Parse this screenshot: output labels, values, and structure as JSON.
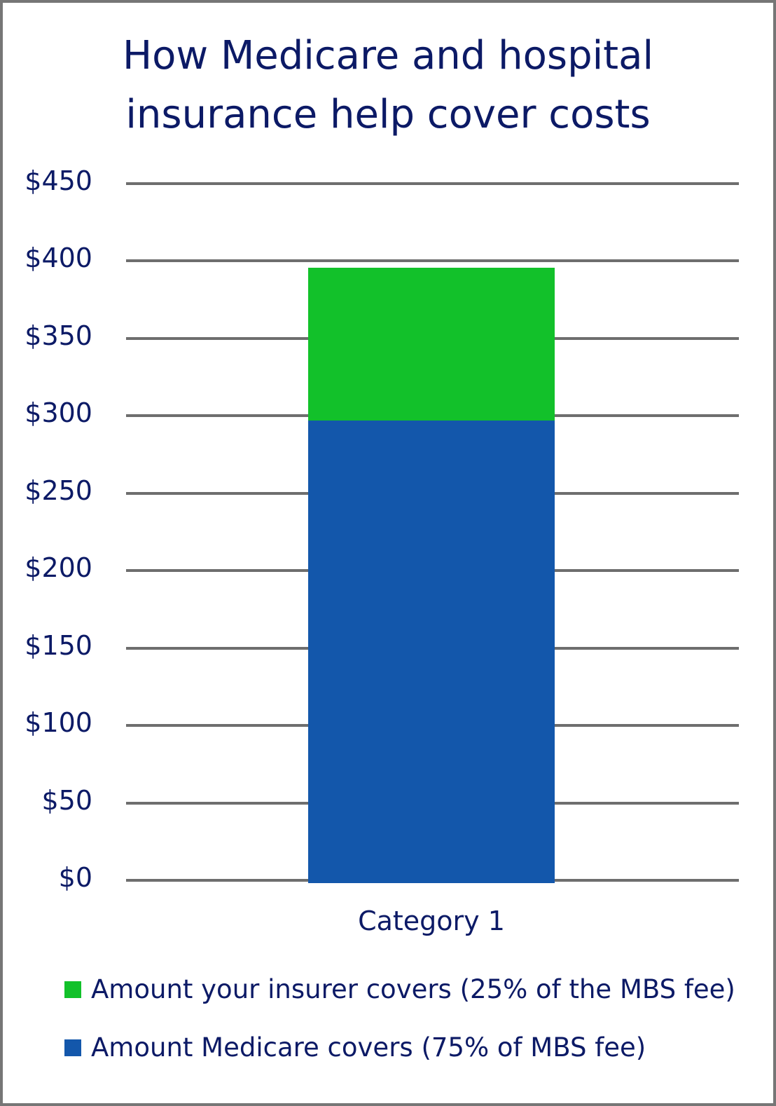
{
  "chart_data": {
    "type": "bar",
    "stacked": true,
    "title": "How Medicare and hospital insurance help cover costs",
    "title_lines": [
      "How Medicare and hospital",
      "insurance help cover costs"
    ],
    "categories": [
      "Category 1"
    ],
    "series": [
      {
        "name": "Amount Medicare covers (75% of MBS fee)",
        "values": [
          300
        ],
        "color": "#1357ab"
      },
      {
        "name": "Amount your insurer covers (25% of the MBS fee)",
        "values": [
          100
        ],
        "color": "#12c12a"
      }
    ],
    "yticks": [
      "$0",
      "$50",
      "$100",
      "$150",
      "$200",
      "$250",
      "$300",
      "$350",
      "$400",
      "$450"
    ],
    "ylim": [
      0,
      450
    ],
    "grid": true,
    "legend_position": "bottom",
    "xlabel": "",
    "ylabel": ""
  },
  "legend": [
    {
      "label": "Amount your insurer covers (25% of the MBS fee)",
      "color": "#12c12a"
    },
    {
      "label": "Amount Medicare covers (75% of MBS fee)",
      "color": "#1357ab"
    }
  ]
}
